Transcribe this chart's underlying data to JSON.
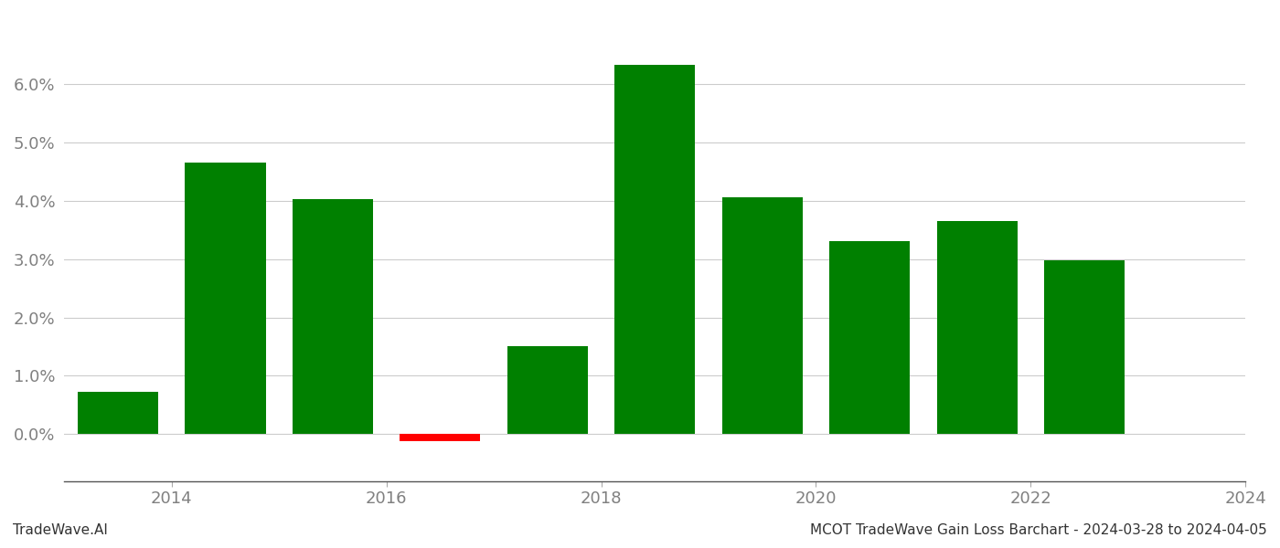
{
  "years": [
    2014,
    2015,
    2016,
    2017,
    2018,
    2019,
    2020,
    2021,
    2022,
    2023
  ],
  "values": [
    0.0072,
    0.0465,
    0.0402,
    -0.0012,
    0.0151,
    0.0632,
    0.0405,
    0.0331,
    0.0365,
    0.0298
  ],
  "colors": [
    "#008000",
    "#008000",
    "#008000",
    "#ff0000",
    "#008000",
    "#008000",
    "#008000",
    "#008000",
    "#008000",
    "#008000"
  ],
  "ylim": [
    -0.008,
    0.072
  ],
  "yticks": [
    0.0,
    0.01,
    0.02,
    0.03,
    0.04,
    0.05,
    0.06
  ],
  "footer_left": "TradeWave.AI",
  "footer_right": "MCOT TradeWave Gain Loss Barchart - 2024-03-28 to 2024-04-05",
  "bar_width": 0.75,
  "background_color": "#ffffff",
  "grid_color": "#cccccc",
  "tick_label_color": "#808080",
  "footer_fontsize": 11,
  "bar_edge_color": "none",
  "xtick_positions": [
    2014.5,
    2016.5,
    2018.5,
    2020.5,
    2022.5,
    2024.5
  ],
  "xtick_labels": [
    "2014",
    "2016",
    "2018",
    "2020",
    "2022",
    "2024"
  ],
  "xlim": [
    2013.5,
    2024.5
  ]
}
